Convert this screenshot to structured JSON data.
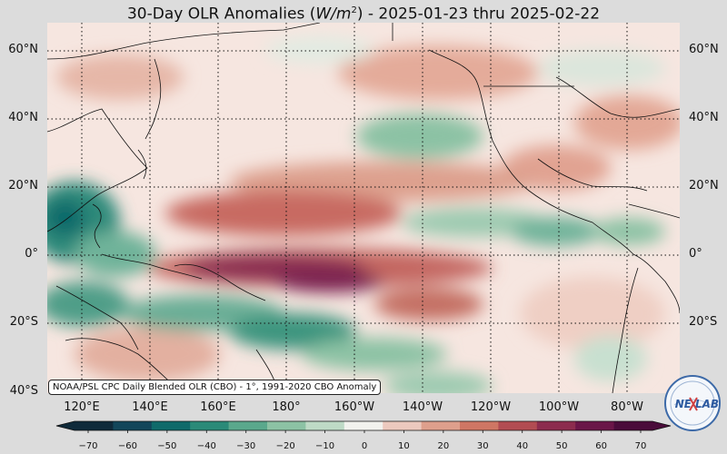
{
  "title": {
    "prefix": "30-Day OLR Anomalies (",
    "unit": "W/m",
    "unit_exp": "2",
    "suffix": ") - 2025-01-23 thru 2025-02-22"
  },
  "lat_labels": [
    "60°N",
    "40°N",
    "20°N",
    "0°",
    "20°S",
    "40°S"
  ],
  "lat_labels_right": [
    "60°N",
    "40°N",
    "20°N",
    "0°",
    "20°S"
  ],
  "lon_labels": [
    "120°E",
    "140°E",
    "160°E",
    "180°",
    "160°W",
    "140°W",
    "120°W",
    "100°W",
    "80°W"
  ],
  "credit": "NOAA/PSL CPC Daily Blended OLR (CBO) - 1°, 1991-2020 CBO Anomaly",
  "colorbar": {
    "ticks": [
      "−70",
      "−60",
      "−50",
      "−40",
      "−30",
      "−20",
      "−10",
      "0",
      "10",
      "20",
      "30",
      "40",
      "50",
      "60",
      "70"
    ],
    "colors": [
      "#0f2a3a",
      "#12465a",
      "#0f6a6a",
      "#2a8a78",
      "#5aa88c",
      "#8cc2a4",
      "#bedac6",
      "#f2f2ee",
      "#ecc9be",
      "#de9f8c",
      "#cf7664",
      "#b24c52",
      "#8c2c4e",
      "#6a1648",
      "#4a0c3a"
    ]
  },
  "logo": {
    "text_main": "NE",
    "text_accent": "LAB"
  }
}
